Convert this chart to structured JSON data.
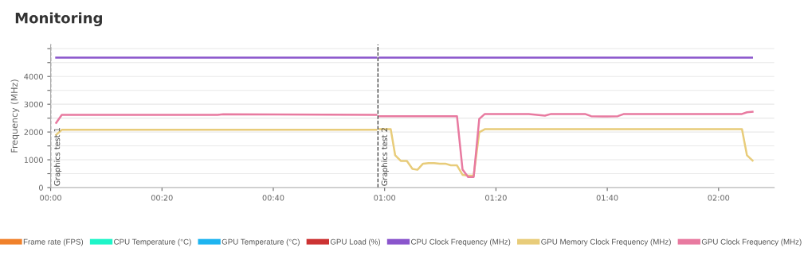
{
  "chart_data": {
    "type": "line",
    "title": "Monitoring",
    "ylabel": "Frequency (MHz)",
    "xlim": [
      0,
      130
    ],
    "ylim": [
      0,
      5150
    ],
    "xticks": [
      {
        "value": 0,
        "label": "00:00"
      },
      {
        "value": 20,
        "label": "00:20"
      },
      {
        "value": 40,
        "label": "00:40"
      },
      {
        "value": 60,
        "label": "01:00"
      },
      {
        "value": 80,
        "label": "01:20"
      },
      {
        "value": 100,
        "label": "01:40"
      },
      {
        "value": 120,
        "label": "02:00"
      }
    ],
    "yticks": [
      0,
      {
        "value": 500,
        "label": null
      },
      1000,
      {
        "value": 1500,
        "label": null
      },
      2000,
      {
        "value": 2500,
        "label": null
      },
      3000,
      {
        "value": 3500,
        "label": null
      },
      4000,
      {
        "value": 4500,
        "label": null
      },
      {
        "value": 5000,
        "label": null
      }
    ],
    "grid": "y",
    "legend": "bottom",
    "marker": "none",
    "line_style": "solid",
    "ref_lines": [
      {
        "axis": "x",
        "value": 0,
        "label": "Graphics test 1",
        "color": "#333333",
        "line_style": "dashed"
      },
      {
        "axis": "x",
        "value": 58.8,
        "label": "Graphics test 2",
        "color": "#333333",
        "line_style": "dashed"
      }
    ],
    "series": [
      {
        "name": "Frame rate (FPS)",
        "color": "#f0812b"
      },
      {
        "name": "CPU Temperature (°C)",
        "color": "#1ef5c8"
      },
      {
        "name": "GPU Temperature (°C)",
        "color": "#1eb4f0"
      },
      {
        "name": "GPU Load (%)",
        "color": "#cc3333"
      },
      {
        "name": "CPU Clock Frequency (MHz)",
        "color": "#8a55cc",
        "x": [
          1,
          58.5,
          58.8,
          59.1,
          126
        ],
        "values": [
          4680,
          4680,
          null,
          4680,
          4680
        ]
      },
      {
        "name": "GPU Memory Clock Frequency (MHz)",
        "color": "#e8cc7a",
        "x": [
          1,
          2,
          58.5,
          58.8,
          59.1,
          61.1,
          61.9,
          62.9,
          64,
          65,
          65.9,
          66.9,
          67.9,
          68.9,
          69.9,
          70.9,
          71.9,
          73,
          74,
          75,
          76,
          77,
          78,
          124.2,
          125.1,
          126.1
        ],
        "values": [
          1900,
          2080,
          2080,
          null,
          2100,
          2100,
          1160,
          960,
          960,
          670,
          640,
          860,
          880,
          880,
          860,
          860,
          800,
          800,
          460,
          430,
          430,
          1990,
          2100,
          2100,
          1160,
          970
        ]
      },
      {
        "name": "GPU Clock Frequency (MHz)",
        "color": "#e87aa0",
        "x": [
          1,
          2,
          30,
          31,
          58.5,
          58.8,
          59.1,
          73,
          74,
          75,
          76,
          77,
          78,
          85.9,
          88.8,
          89.9,
          96,
          97.1,
          99,
          101.9,
          103,
          124.2,
          125.1,
          126.1
        ],
        "values": [
          2330,
          2620,
          2620,
          2640,
          2620,
          null,
          2570,
          2570,
          650,
          380,
          380,
          2470,
          2650,
          2650,
          2590,
          2650,
          2650,
          2570,
          2560,
          2570,
          2650,
          2650,
          2710,
          2730
        ]
      }
    ]
  }
}
